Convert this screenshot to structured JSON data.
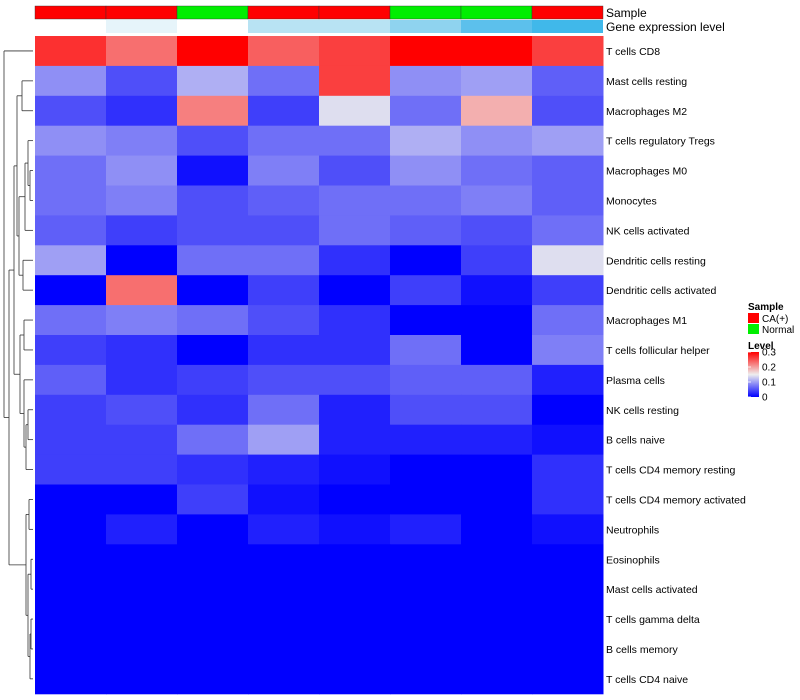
{
  "chart_data": {
    "type": "heatmap",
    "rows": [
      "T cells CD8",
      "Mast cells resting",
      "Macrophages M2",
      "T cells regulatory  Tregs",
      "Macrophages M0",
      "Monocytes",
      "NK cells activated",
      "Dendritic cells resting",
      "Dendritic cells activated",
      "Macrophages M1",
      "T cells follicular helper",
      "Plasma cells",
      "NK cells resting",
      "B cells naive",
      "T cells CD4 memory resting",
      "T cells CD4 memory activated",
      "Neutrophils",
      "Eosinophils",
      "Mast cells activated",
      "T cells gamma delta",
      "B cells memory",
      "T cells CD4 naive"
    ],
    "columns": 8,
    "values": [
      [
        0.27,
        0.23,
        0.3,
        0.24,
        0.26,
        0.3,
        0.3,
        0.26
      ],
      [
        0.09,
        0.05,
        0.11,
        0.07,
        0.26,
        0.09,
        0.1,
        0.06
      ],
      [
        0.05,
        0.03,
        0.22,
        0.04,
        0.14,
        0.07,
        0.19,
        0.05
      ],
      [
        0.09,
        0.08,
        0.05,
        0.07,
        0.07,
        0.11,
        0.09,
        0.1
      ],
      [
        0.07,
        0.09,
        0.01,
        0.08,
        0.05,
        0.09,
        0.07,
        0.06
      ],
      [
        0.07,
        0.08,
        0.05,
        0.06,
        0.07,
        0.07,
        0.08,
        0.06
      ],
      [
        0.06,
        0.04,
        0.05,
        0.05,
        0.07,
        0.06,
        0.05,
        0.07
      ],
      [
        0.1,
        0.0,
        0.07,
        0.07,
        0.03,
        0.0,
        0.04,
        0.14
      ],
      [
        0.0,
        0.23,
        0.0,
        0.04,
        0.0,
        0.04,
        0.01,
        0.04
      ],
      [
        0.07,
        0.08,
        0.07,
        0.05,
        0.03,
        0.0,
        0.0,
        0.07
      ],
      [
        0.04,
        0.03,
        0.0,
        0.03,
        0.03,
        0.07,
        0.0,
        0.08
      ],
      [
        0.06,
        0.03,
        0.04,
        0.05,
        0.05,
        0.06,
        0.06,
        0.02
      ],
      [
        0.04,
        0.05,
        0.03,
        0.07,
        0.02,
        0.05,
        0.05,
        0.0
      ],
      [
        0.04,
        0.04,
        0.07,
        0.1,
        0.02,
        0.02,
        0.02,
        0.01
      ],
      [
        0.04,
        0.04,
        0.03,
        0.02,
        0.01,
        0.0,
        0.0,
        0.03
      ],
      [
        0.0,
        0.0,
        0.04,
        0.01,
        0.0,
        0.0,
        0.0,
        0.03
      ],
      [
        0.0,
        0.02,
        0.0,
        0.02,
        0.01,
        0.02,
        0.0,
        0.01
      ],
      [
        0.0,
        0.0,
        0.0,
        0.0,
        0.0,
        0.0,
        0.0,
        0.0
      ],
      [
        0.0,
        0.0,
        0.0,
        0.0,
        0.0,
        0.0,
        0.0,
        0.0
      ],
      [
        0.0,
        0.0,
        0.0,
        0.0,
        0.0,
        0.0,
        0.0,
        0.0
      ],
      [
        0.0,
        0.0,
        0.0,
        0.0,
        0.0,
        0.0,
        0.0,
        0.0
      ],
      [
        0.0,
        0.0,
        0.0,
        0.0,
        0.0,
        0.0,
        0.0,
        0.0
      ]
    ],
    "sample_annotation": {
      "label": "Sample",
      "values": [
        "CA(+)",
        "CA(+)",
        "Normal",
        "CA(+)",
        "CA(+)",
        "Normal",
        "Normal",
        "CA(+)"
      ],
      "colors": {
        "CA(+)": "#ff0000",
        "Normal": "#00ee00"
      }
    },
    "gene_expression_annotation": {
      "label": "Gene expression level",
      "colors": [
        "#ffffff",
        "#e6f4fa",
        "#ffffff",
        "#b8e3f3",
        "#b8e3f3",
        "#8fd3ef",
        "#5cc0ec",
        "#40b8ea"
      ]
    },
    "color_scale": {
      "min": 0,
      "max": 0.3,
      "low": "#0000ff",
      "mid": "#eeeeee",
      "high": "#ff0000"
    },
    "legend": {
      "sample_title": "Sample",
      "sample_items": [
        {
          "label": "CA(+)",
          "color": "#ff0000"
        },
        {
          "label": "Normal",
          "color": "#00ee00"
        }
      ],
      "level_title": "Level",
      "level_ticks": [
        "0.3",
        "0.2",
        "0.1",
        "0"
      ],
      "level_tick_values": [
        0.3,
        0.2,
        0.1,
        0
      ]
    }
  }
}
